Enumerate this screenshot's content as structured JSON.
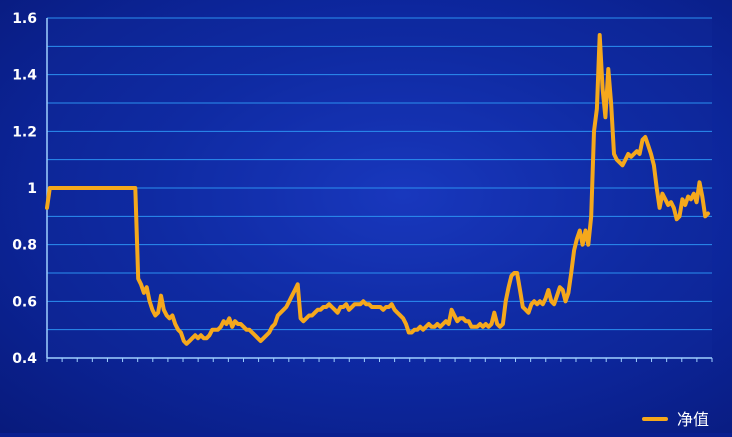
{
  "chart_data": {
    "type": "line",
    "title": "",
    "xlabel": "",
    "ylabel": "",
    "ylim": [
      0.4,
      1.6
    ],
    "yticks": [
      "0.4",
      "0.6",
      "0.8",
      "1",
      "1.2",
      "1.4",
      "1.6"
    ],
    "grid": true,
    "legend_position": "bottom-right",
    "series": [
      {
        "name": "净值",
        "color": "#f5a81c",
        "values": [
          0.93,
          1.0,
          1.0,
          1.0,
          1.0,
          1.0,
          1.0,
          1.0,
          1.0,
          1.0,
          1.0,
          1.0,
          1.0,
          1.0,
          1.0,
          1.0,
          1.0,
          1.0,
          1.0,
          1.0,
          1.0,
          1.0,
          1.0,
          1.0,
          1.0,
          1.0,
          1.0,
          1.0,
          1.0,
          1.0,
          1.0,
          1.0,
          0.68,
          0.66,
          0.63,
          0.65,
          0.6,
          0.57,
          0.55,
          0.56,
          0.62,
          0.57,
          0.55,
          0.54,
          0.55,
          0.52,
          0.5,
          0.49,
          0.46,
          0.45,
          0.46,
          0.47,
          0.48,
          0.47,
          0.48,
          0.47,
          0.47,
          0.48,
          0.5,
          0.5,
          0.5,
          0.51,
          0.53,
          0.52,
          0.54,
          0.51,
          0.53,
          0.52,
          0.52,
          0.51,
          0.5,
          0.5,
          0.49,
          0.48,
          0.47,
          0.46,
          0.47,
          0.48,
          0.49,
          0.51,
          0.52,
          0.55,
          0.56,
          0.57,
          0.58,
          0.6,
          0.62,
          0.64,
          0.66,
          0.54,
          0.53,
          0.54,
          0.55,
          0.55,
          0.56,
          0.57,
          0.57,
          0.58,
          0.58,
          0.59,
          0.58,
          0.57,
          0.56,
          0.58,
          0.58,
          0.59,
          0.57,
          0.58,
          0.59,
          0.59,
          0.59,
          0.6,
          0.59,
          0.59,
          0.58,
          0.58,
          0.58,
          0.58,
          0.57,
          0.58,
          0.58,
          0.59,
          0.57,
          0.56,
          0.55,
          0.54,
          0.52,
          0.49,
          0.49,
          0.5,
          0.5,
          0.51,
          0.5,
          0.51,
          0.52,
          0.51,
          0.51,
          0.52,
          0.51,
          0.52,
          0.53,
          0.52,
          0.57,
          0.55,
          0.53,
          0.54,
          0.54,
          0.53,
          0.53,
          0.51,
          0.51,
          0.51,
          0.52,
          0.51,
          0.52,
          0.51,
          0.52,
          0.56,
          0.52,
          0.51,
          0.52,
          0.6,
          0.65,
          0.69,
          0.7,
          0.7,
          0.64,
          0.58,
          0.57,
          0.56,
          0.59,
          0.6,
          0.59,
          0.6,
          0.59,
          0.61,
          0.64,
          0.6,
          0.59,
          0.62,
          0.65,
          0.64,
          0.6,
          0.63,
          0.7,
          0.78,
          0.82,
          0.85,
          0.8,
          0.85,
          0.8,
          0.9,
          1.2,
          1.28,
          1.54,
          1.35,
          1.25,
          1.42,
          1.3,
          1.12,
          1.1,
          1.09,
          1.08,
          1.1,
          1.12,
          1.11,
          1.12,
          1.13,
          1.12,
          1.17,
          1.18,
          1.15,
          1.12,
          1.08,
          1.0,
          0.93,
          0.98,
          0.96,
          0.94,
          0.95,
          0.93,
          0.89,
          0.9,
          0.96,
          0.94,
          0.97,
          0.96,
          0.98,
          0.95,
          1.02,
          0.97,
          0.9,
          0.91
        ]
      }
    ]
  }
}
